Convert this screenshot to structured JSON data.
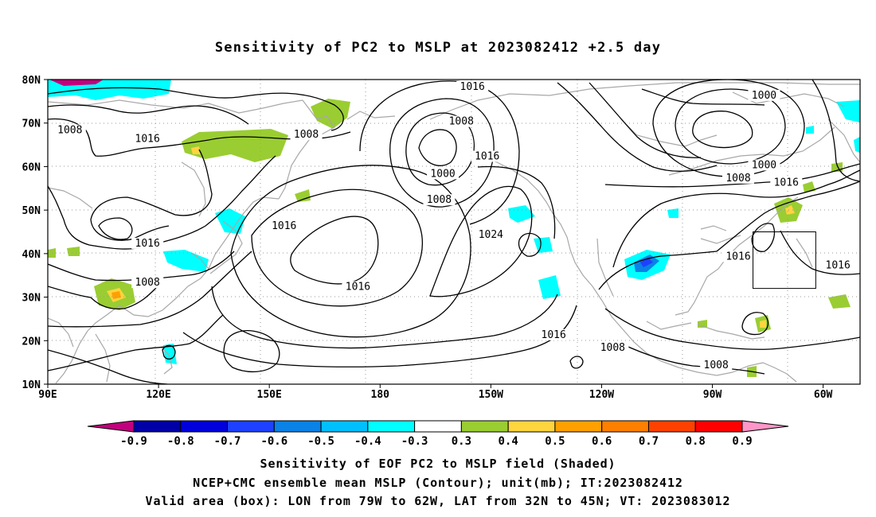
{
  "title": "Sensitivity of PC2 to MSLP at 2023082412 +2.5 day",
  "map": {
    "lon_range": [
      90,
      310
    ],
    "lat_range": [
      10,
      80
    ],
    "lat_ticks": [
      {
        "value": 80,
        "label": "80N"
      },
      {
        "value": 70,
        "label": "70N"
      },
      {
        "value": 60,
        "label": "60N"
      },
      {
        "value": 50,
        "label": "50N"
      },
      {
        "value": 40,
        "label": "40N"
      },
      {
        "value": 30,
        "label": "30N"
      },
      {
        "value": 20,
        "label": "20N"
      },
      {
        "value": 10,
        "label": "10N"
      }
    ],
    "lon_ticks": [
      {
        "value": 90,
        "label": "90E"
      },
      {
        "value": 120,
        "label": "120E"
      },
      {
        "value": 150,
        "label": "150E"
      },
      {
        "value": 180,
        "label": "180"
      },
      {
        "value": 210,
        "label": "150W"
      },
      {
        "value": 240,
        "label": "120W"
      },
      {
        "value": 270,
        "label": "90W"
      },
      {
        "value": 300,
        "label": "60W"
      }
    ],
    "grid": true,
    "valid_box": {
      "lon_min": 281,
      "lon_max": 298,
      "lat_min": 32,
      "lat_max": 45
    },
    "contour_labels": [
      {
        "text": "1016",
        "lon": 205,
        "lat": 78
      },
      {
        "text": "1000",
        "lon": 284,
        "lat": 76
      },
      {
        "text": "1008",
        "lon": 96,
        "lat": 68
      },
      {
        "text": "1016",
        "lon": 117,
        "lat": 66
      },
      {
        "text": "1008",
        "lon": 160,
        "lat": 67
      },
      {
        "text": "1008",
        "lon": 202,
        "lat": 70
      },
      {
        "text": "1016",
        "lon": 209,
        "lat": 62
      },
      {
        "text": "1000",
        "lon": 197,
        "lat": 58
      },
      {
        "text": "1008",
        "lon": 196,
        "lat": 52
      },
      {
        "text": "1008",
        "lon": 277,
        "lat": 57
      },
      {
        "text": "1000",
        "lon": 284,
        "lat": 60
      },
      {
        "text": "1016",
        "lon": 290,
        "lat": 56
      },
      {
        "text": "1016",
        "lon": 117,
        "lat": 42
      },
      {
        "text": "1016",
        "lon": 154,
        "lat": 46
      },
      {
        "text": "1024",
        "lon": 210,
        "lat": 44
      },
      {
        "text": "1016",
        "lon": 277,
        "lat": 39
      },
      {
        "text": "1016",
        "lon": 304,
        "lat": 37
      },
      {
        "text": "1008",
        "lon": 117,
        "lat": 33
      },
      {
        "text": "1016",
        "lon": 174,
        "lat": 32
      },
      {
        "text": "1016",
        "lon": 227,
        "lat": 21
      },
      {
        "text": "1008",
        "lon": 243,
        "lat": 18
      },
      {
        "text": "1008",
        "lon": 271,
        "lat": 14
      }
    ]
  },
  "colorbar": {
    "colors": [
      "#c3007d",
      "#0000a6",
      "#0000dc",
      "#1e41ff",
      "#0a82e6",
      "#00bfff",
      "#00ffff",
      "#ffffff",
      "#9acd32",
      "#fed43f",
      "#ffa000",
      "#ff7f00",
      "#ff4100",
      "#ff0000",
      "#ff96c8"
    ],
    "labels": [
      "-0.9",
      "-0.8",
      "-0.7",
      "-0.6",
      "-0.5",
      "-0.4",
      "-0.3",
      "0.3",
      "0.4",
      "0.5",
      "0.6",
      "0.7",
      "0.8",
      "0.9"
    ]
  },
  "captions": [
    "Sensitivity of EOF PC2 to MSLP field (Shaded)",
    "NCEP+CMC ensemble mean MSLP (Contour); unit(mb); IT:2023082412",
    "Valid area (box): LON from 79W to 62W, LAT from 32N to 45N; VT: 2023083012"
  ]
}
